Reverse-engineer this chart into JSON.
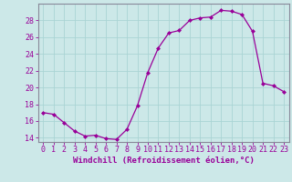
{
  "hours": [
    0,
    1,
    2,
    3,
    4,
    5,
    6,
    7,
    8,
    9,
    10,
    11,
    12,
    13,
    14,
    15,
    16,
    17,
    18,
    19,
    20,
    21,
    22,
    23
  ],
  "windchill": [
    17.0,
    16.8,
    15.8,
    14.8,
    14.2,
    14.3,
    13.9,
    13.8,
    15.0,
    17.8,
    21.8,
    24.7,
    26.5,
    26.8,
    28.0,
    28.3,
    28.4,
    29.2,
    29.1,
    28.7,
    26.7,
    20.5,
    20.2,
    19.5
  ],
  "line_color": "#990099",
  "marker": "D",
  "marker_size": 2.0,
  "bg_color": "#cce8e8",
  "grid_color": "#aad4d4",
  "xlabel": "Windchill (Refroidissement éolien,°C)",
  "xlim": [
    -0.5,
    23.5
  ],
  "ylim": [
    13.5,
    30.0
  ],
  "yticks": [
    14,
    16,
    18,
    20,
    22,
    24,
    26,
    28
  ],
  "xtick_labels": [
    "0",
    "1",
    "2",
    "3",
    "4",
    "5",
    "6",
    "7",
    "8",
    "9",
    "10",
    "11",
    "12",
    "13",
    "14",
    "15",
    "16",
    "17",
    "18",
    "19",
    "20",
    "21",
    "22",
    "23"
  ],
  "spine_color": "#888899",
  "tick_color": "#990099",
  "xlabel_color": "#990099",
  "xlabel_fontsize": 6.5,
  "label_fontsize": 6.0
}
